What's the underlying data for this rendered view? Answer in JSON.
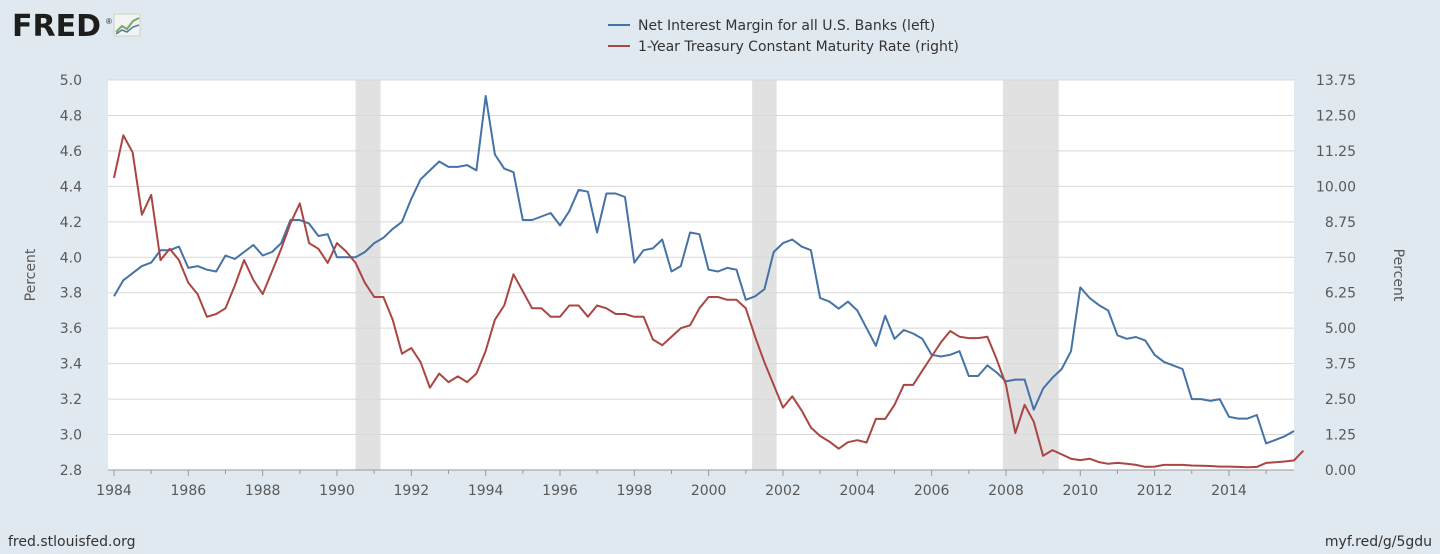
{
  "brand": {
    "logo_text": "FRED",
    "trademark": "®"
  },
  "footer": {
    "left": "fred.stlouisfed.org",
    "right": "myf.red/g/5gdu"
  },
  "colors": {
    "background": "#e1e9f0",
    "plot": "#ffffff",
    "series_blue": "#4572a7",
    "series_red": "#aa4643",
    "recession": "#e1e1e1",
    "grid": "#d8d8d8"
  },
  "chart_data": {
    "type": "line",
    "legend_position": "top-center",
    "grid": true,
    "x_range": [
      1984,
      2015.75
    ],
    "x_ticks": [
      "1984",
      "1986",
      "1988",
      "1990",
      "1992",
      "1994",
      "1996",
      "1998",
      "2000",
      "2002",
      "2004",
      "2006",
      "2008",
      "2010",
      "2012",
      "2014"
    ],
    "y_left": {
      "label": "Percent",
      "range": [
        2.8,
        5.0
      ],
      "ticks": [
        "2.8",
        "3.0",
        "3.2",
        "3.4",
        "3.6",
        "3.8",
        "4.0",
        "4.2",
        "4.4",
        "4.6",
        "4.8",
        "5.0"
      ]
    },
    "y_right": {
      "label": "Percent",
      "range": [
        0,
        13.75
      ],
      "ticks": [
        "0.00",
        "1.25",
        "2.50",
        "3.75",
        "5.00",
        "6.25",
        "7.50",
        "8.75",
        "10.00",
        "11.25",
        "12.50",
        "13.75"
      ]
    },
    "recessions": [
      [
        1990.5,
        1991.17
      ],
      [
        2001.17,
        2001.83
      ],
      [
        2007.92,
        2009.42
      ]
    ],
    "series": [
      {
        "name": "Net Interest Margin for all U.S. Banks (left)",
        "axis": "left",
        "color": "#4572a7",
        "start": 1984.0,
        "step": 0.25,
        "values": [
          3.78,
          3.87,
          3.91,
          3.95,
          3.97,
          4.04,
          4.04,
          4.06,
          3.94,
          3.95,
          3.93,
          3.92,
          4.01,
          3.99,
          4.03,
          4.07,
          4.01,
          4.03,
          4.08,
          4.21,
          4.21,
          4.19,
          4.12,
          4.13,
          4.0,
          4.0,
          4.0,
          4.03,
          4.08,
          4.11,
          4.16,
          4.2,
          4.33,
          4.44,
          4.49,
          4.54,
          4.51,
          4.51,
          4.52,
          4.49,
          4.91,
          4.58,
          4.5,
          4.48,
          4.21,
          4.21,
          4.23,
          4.25,
          4.18,
          4.26,
          4.38,
          4.37,
          4.14,
          4.36,
          4.36,
          4.34,
          3.97,
          4.04,
          4.05,
          4.1,
          3.92,
          3.95,
          4.14,
          4.13,
          3.93,
          3.92,
          3.94,
          3.93,
          3.76,
          3.78,
          3.82,
          4.03,
          4.08,
          4.1,
          4.06,
          4.04,
          3.77,
          3.75,
          3.71,
          3.75,
          3.7,
          3.6,
          3.5,
          3.67,
          3.54,
          3.59,
          3.57,
          3.54,
          3.45,
          3.44,
          3.45,
          3.47,
          3.33,
          3.33,
          3.39,
          3.35,
          3.3,
          3.31,
          3.31,
          3.14,
          3.26,
          3.32,
          3.37,
          3.47,
          3.83,
          3.77,
          3.73,
          3.7,
          3.56,
          3.54,
          3.55,
          3.53,
          3.45,
          3.41,
          3.39,
          3.37,
          3.2,
          3.2,
          3.19,
          3.2,
          3.1,
          3.09,
          3.09,
          3.11,
          2.95,
          2.97,
          2.99,
          3.02
        ]
      },
      {
        "name": "1-Year Treasury Constant Maturity Rate (right)",
        "axis": "right",
        "color": "#aa4643",
        "start": 1984.0,
        "step": 0.25,
        "values": [
          10.3,
          11.8,
          11.2,
          9.0,
          9.7,
          7.4,
          7.8,
          7.4,
          6.6,
          6.2,
          5.4,
          5.5,
          5.7,
          6.5,
          7.4,
          6.7,
          6.2,
          7.0,
          7.8,
          8.7,
          9.4,
          8.0,
          7.8,
          7.3,
          8.0,
          7.7,
          7.3,
          6.6,
          6.1,
          6.1,
          5.3,
          4.1,
          4.3,
          3.8,
          2.9,
          3.4,
          3.1,
          3.3,
          3.1,
          3.4,
          4.2,
          5.3,
          5.8,
          6.9,
          6.3,
          5.7,
          5.7,
          5.4,
          5.4,
          5.8,
          5.8,
          5.4,
          5.8,
          5.7,
          5.5,
          5.5,
          5.4,
          5.4,
          4.6,
          4.4,
          4.7,
          5.0,
          5.1,
          5.7,
          6.1,
          6.1,
          6.0,
          6.0,
          5.7,
          4.7,
          3.8,
          3.0,
          2.2,
          2.6,
          2.1,
          1.5,
          1.2,
          1.0,
          0.75,
          0.98,
          1.05,
          0.97,
          1.8,
          1.8,
          2.3,
          3.0,
          3.0,
          3.5,
          4.0,
          4.5,
          4.9,
          4.7,
          4.65,
          4.65,
          4.7,
          3.9,
          3.0,
          1.3,
          2.3,
          1.7,
          0.5,
          0.7,
          0.55,
          0.4,
          0.35,
          0.4,
          0.28,
          0.22,
          0.25,
          0.22,
          0.18,
          0.11,
          0.12,
          0.18,
          0.18,
          0.18,
          0.16,
          0.15,
          0.14,
          0.12,
          0.12,
          0.11,
          0.1,
          0.11,
          0.25,
          0.27,
          0.3,
          0.34,
          0.68
        ]
      }
    ]
  }
}
